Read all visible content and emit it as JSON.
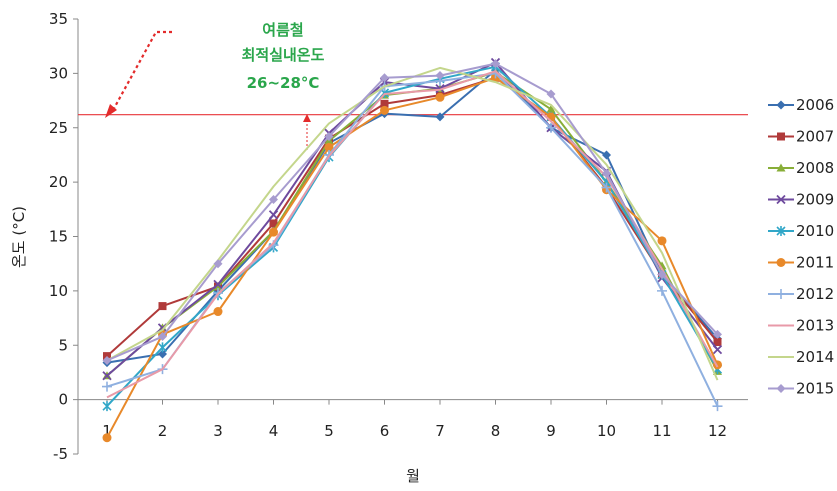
{
  "chart_data": {
    "type": "line",
    "title": "",
    "xlabel": "월",
    "ylabel": "온도 (°C)",
    "x": [
      1,
      2,
      3,
      4,
      5,
      6,
      7,
      8,
      9,
      10,
      11,
      12
    ],
    "ylim": [
      -5,
      35
    ],
    "yticks": [
      -5,
      0,
      5,
      10,
      15,
      20,
      25,
      30,
      35
    ],
    "grid": false,
    "legend_position": "right",
    "reference_line": {
      "value": 26.2,
      "color": "#e8343a"
    },
    "annotation": {
      "lines": [
        "여름철",
        "최적실내온도",
        "26~28°C"
      ],
      "color": "#2aa64b"
    },
    "series": [
      {
        "name": "2006",
        "color": "#3a6fb0",
        "marker": "diamond",
        "values": [
          3.4,
          4.2,
          10.0,
          15.5,
          23.6,
          26.3,
          26.0,
          30.3,
          25.0,
          22.5,
          11.5,
          5.6
        ]
      },
      {
        "name": "2007",
        "color": "#b03a3a",
        "marker": "square",
        "values": [
          4.0,
          8.6,
          10.4,
          16.2,
          24.0,
          27.2,
          28.0,
          29.6,
          26.0,
          19.5,
          11.5,
          5.3
        ]
      },
      {
        "name": "2008",
        "color": "#88ae38",
        "marker": "triangle",
        "values": [
          2.2,
          6.6,
          10.4,
          15.5,
          23.8,
          28.0,
          28.6,
          30.1,
          26.7,
          20.0,
          12.3,
          2.6
        ]
      },
      {
        "name": "2009",
        "color": "#6e4a9e",
        "marker": "x",
        "values": [
          2.2,
          6.6,
          10.6,
          17.0,
          24.5,
          29.2,
          28.6,
          31.0,
          25.0,
          21.0,
          11.2,
          4.6
        ]
      },
      {
        "name": "2010",
        "color": "#31a7c8",
        "marker": "star",
        "values": [
          -0.6,
          4.8,
          9.6,
          14.0,
          22.3,
          28.2,
          29.5,
          30.6,
          26.0,
          20.0,
          11.5,
          2.8
        ]
      },
      {
        "name": "2011",
        "color": "#e8892a",
        "marker": "circle",
        "values": [
          -3.5,
          6.0,
          8.1,
          15.4,
          23.2,
          26.6,
          27.8,
          29.6,
          26.0,
          19.3,
          14.6,
          3.2
        ]
      },
      {
        "name": "2012",
        "color": "#8fb0e0",
        "marker": "plus",
        "values": [
          1.2,
          2.8,
          9.8,
          14.2,
          22.5,
          28.8,
          29.3,
          30.0,
          25.0,
          19.5,
          10.0,
          -0.6
        ]
      },
      {
        "name": "2013",
        "color": "#e89aa8",
        "marker": "none",
        "values": [
          0.2,
          2.8,
          9.7,
          14.4,
          22.4,
          28.1,
          28.5,
          30.2,
          25.6,
          20.5,
          12.0,
          3.0
        ]
      },
      {
        "name": "2014",
        "color": "#c4d68c",
        "marker": "none",
        "values": [
          3.6,
          6.4,
          12.8,
          19.6,
          25.4,
          28.8,
          30.5,
          29.2,
          27.1,
          21.6,
          13.5,
          1.8
        ]
      },
      {
        "name": "2015",
        "color": "#a79ccf",
        "marker": "diamond",
        "values": [
          3.6,
          5.8,
          12.5,
          18.4,
          24.2,
          29.6,
          29.8,
          30.9,
          28.1,
          20.8,
          11.5,
          6.0
        ]
      }
    ]
  }
}
